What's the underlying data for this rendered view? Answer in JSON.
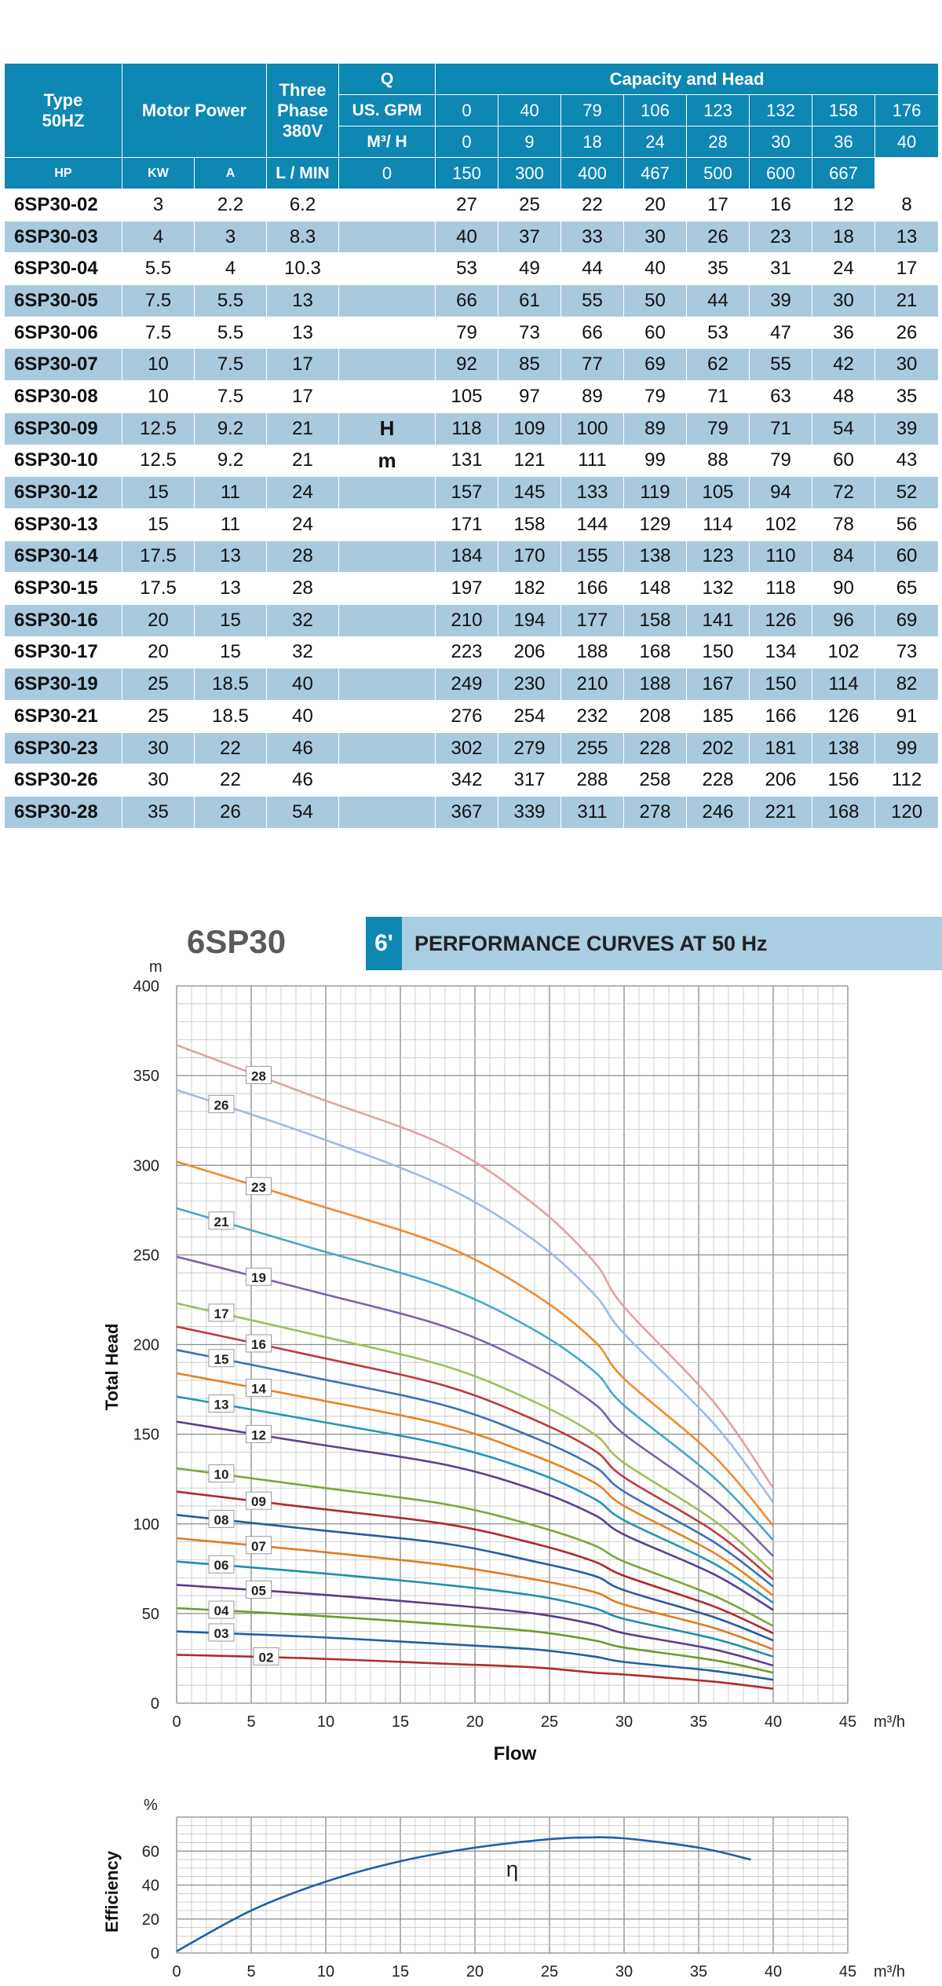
{
  "table": {
    "header": {
      "type": "Type\n50HZ",
      "type_line1": "Type",
      "type_line2": "50HZ",
      "motor_power": "Motor Power",
      "three_phase_1": "Three",
      "three_phase_2": "Phase",
      "three_phase_3": "380V",
      "q": "Q",
      "capacity_head": "Capacity and Head",
      "us_gpm_label": "US. GPM",
      "m3h_label": "M³/ H",
      "lmin_label": "L / MIN",
      "hp": "HP",
      "kw": "KW",
      "a": "A",
      "us_gpm": [
        "0",
        "40",
        "79",
        "106",
        "123",
        "132",
        "158",
        "176"
      ],
      "m3h": [
        "0",
        "9",
        "18",
        "24",
        "28",
        "30",
        "36",
        "40"
      ],
      "lmin": [
        "0",
        "150",
        "300",
        "400",
        "467",
        "500",
        "600",
        "667"
      ]
    },
    "h_label": "H",
    "m_label": "m",
    "rows": [
      {
        "type": "6SP30-02",
        "hp": "3",
        "kw": "2.2",
        "a": "6.2",
        "head": [
          "27",
          "25",
          "22",
          "20",
          "17",
          "16",
          "12",
          "8"
        ]
      },
      {
        "type": "6SP30-03",
        "hp": "4",
        "kw": "3",
        "a": "8.3",
        "head": [
          "40",
          "37",
          "33",
          "30",
          "26",
          "23",
          "18",
          "13"
        ]
      },
      {
        "type": "6SP30-04",
        "hp": "5.5",
        "kw": "4",
        "a": "10.3",
        "head": [
          "53",
          "49",
          "44",
          "40",
          "35",
          "31",
          "24",
          "17"
        ]
      },
      {
        "type": "6SP30-05",
        "hp": "7.5",
        "kw": "5.5",
        "a": "13",
        "head": [
          "66",
          "61",
          "55",
          "50",
          "44",
          "39",
          "30",
          "21"
        ]
      },
      {
        "type": "6SP30-06",
        "hp": "7.5",
        "kw": "5.5",
        "a": "13",
        "head": [
          "79",
          "73",
          "66",
          "60",
          "53",
          "47",
          "36",
          "26"
        ]
      },
      {
        "type": "6SP30-07",
        "hp": "10",
        "kw": "7.5",
        "a": "17",
        "head": [
          "92",
          "85",
          "77",
          "69",
          "62",
          "55",
          "42",
          "30"
        ]
      },
      {
        "type": "6SP30-08",
        "hp": "10",
        "kw": "7.5",
        "a": "17",
        "head": [
          "105",
          "97",
          "89",
          "79",
          "71",
          "63",
          "48",
          "35"
        ]
      },
      {
        "type": "6SP30-09",
        "hp": "12.5",
        "kw": "9.2",
        "a": "21",
        "head": [
          "118",
          "109",
          "100",
          "89",
          "79",
          "71",
          "54",
          "39"
        ]
      },
      {
        "type": "6SP30-10",
        "hp": "12.5",
        "kw": "9.2",
        "a": "21",
        "head": [
          "131",
          "121",
          "111",
          "99",
          "88",
          "79",
          "60",
          "43"
        ]
      },
      {
        "type": "6SP30-12",
        "hp": "15",
        "kw": "11",
        "a": "24",
        "head": [
          "157",
          "145",
          "133",
          "119",
          "105",
          "94",
          "72",
          "52"
        ]
      },
      {
        "type": "6SP30-13",
        "hp": "15",
        "kw": "11",
        "a": "24",
        "head": [
          "171",
          "158",
          "144",
          "129",
          "114",
          "102",
          "78",
          "56"
        ]
      },
      {
        "type": "6SP30-14",
        "hp": "17.5",
        "kw": "13",
        "a": "28",
        "head": [
          "184",
          "170",
          "155",
          "138",
          "123",
          "110",
          "84",
          "60"
        ]
      },
      {
        "type": "6SP30-15",
        "hp": "17.5",
        "kw": "13",
        "a": "28",
        "head": [
          "197",
          "182",
          "166",
          "148",
          "132",
          "118",
          "90",
          "65"
        ]
      },
      {
        "type": "6SP30-16",
        "hp": "20",
        "kw": "15",
        "a": "32",
        "head": [
          "210",
          "194",
          "177",
          "158",
          "141",
          "126",
          "96",
          "69"
        ]
      },
      {
        "type": "6SP30-17",
        "hp": "20",
        "kw": "15",
        "a": "32",
        "head": [
          "223",
          "206",
          "188",
          "168",
          "150",
          "134",
          "102",
          "73"
        ]
      },
      {
        "type": "6SP30-19",
        "hp": "25",
        "kw": "18.5",
        "a": "40",
        "head": [
          "249",
          "230",
          "210",
          "188",
          "167",
          "150",
          "114",
          "82"
        ]
      },
      {
        "type": "6SP30-21",
        "hp": "25",
        "kw": "18.5",
        "a": "40",
        "head": [
          "276",
          "254",
          "232",
          "208",
          "185",
          "166",
          "126",
          "91"
        ]
      },
      {
        "type": "6SP30-23",
        "hp": "30",
        "kw": "22",
        "a": "46",
        "head": [
          "302",
          "279",
          "255",
          "228",
          "202",
          "181",
          "138",
          "99"
        ]
      },
      {
        "type": "6SP30-26",
        "hp": "30",
        "kw": "22",
        "a": "46",
        "head": [
          "342",
          "317",
          "288",
          "258",
          "228",
          "206",
          "156",
          "112"
        ]
      },
      {
        "type": "6SP30-28",
        "hp": "35",
        "kw": "26",
        "a": "54",
        "head": [
          "367",
          "339",
          "311",
          "278",
          "246",
          "221",
          "168",
          "120"
        ]
      }
    ]
  },
  "heading": {
    "model": "6SP30",
    "size": "6ʹ",
    "title": "PERFORMANCE CURVES AT 50 Hz"
  },
  "chart_data": [
    {
      "type": "line",
      "title": "",
      "xlabel": "Flow",
      "ylabel": "Total Head",
      "x_unit": "m³/h",
      "y_unit": "m",
      "xlim": [
        0,
        45
      ],
      "ylim": [
        0,
        400
      ],
      "x_ticks": [
        0,
        5,
        10,
        15,
        20,
        25,
        30,
        35,
        40,
        45
      ],
      "y_ticks": [
        0,
        50,
        100,
        150,
        200,
        250,
        300,
        350,
        400
      ],
      "grid": true,
      "x": [
        0,
        9,
        18,
        24,
        28,
        30,
        36,
        40
      ],
      "series": [
        {
          "name": "02",
          "color": "#b22b2b",
          "values": [
            27,
            25,
            22,
            20,
            17,
            16,
            12,
            8
          ]
        },
        {
          "name": "03",
          "color": "#1f5fa8",
          "values": [
            40,
            37,
            33,
            30,
            26,
            23,
            18,
            13
          ]
        },
        {
          "name": "04",
          "color": "#6f9a2c",
          "values": [
            53,
            49,
            44,
            40,
            35,
            31,
            24,
            17
          ]
        },
        {
          "name": "05",
          "color": "#5c3b87",
          "values": [
            66,
            61,
            55,
            50,
            44,
            39,
            30,
            21
          ]
        },
        {
          "name": "06",
          "color": "#1e8fa8",
          "values": [
            79,
            73,
            66,
            60,
            53,
            47,
            36,
            26
          ]
        },
        {
          "name": "07",
          "color": "#e07b22",
          "values": [
            92,
            85,
            77,
            69,
            62,
            55,
            42,
            30
          ]
        },
        {
          "name": "08",
          "color": "#2a5aa0",
          "values": [
            105,
            97,
            89,
            79,
            71,
            63,
            48,
            35
          ]
        },
        {
          "name": "09",
          "color": "#b0282d",
          "values": [
            118,
            109,
            100,
            89,
            79,
            71,
            54,
            39
          ]
        },
        {
          "name": "10",
          "color": "#7ca63a",
          "values": [
            131,
            121,
            111,
            99,
            88,
            79,
            60,
            43
          ]
        },
        {
          "name": "12",
          "color": "#5d3f8e",
          "values": [
            157,
            145,
            133,
            119,
            105,
            94,
            72,
            52
          ]
        },
        {
          "name": "13",
          "color": "#2596b8",
          "values": [
            171,
            158,
            144,
            129,
            114,
            102,
            78,
            56
          ]
        },
        {
          "name": "14",
          "color": "#e8821f",
          "values": [
            184,
            170,
            155,
            138,
            123,
            110,
            84,
            60
          ]
        },
        {
          "name": "15",
          "color": "#3e6fb8",
          "values": [
            197,
            182,
            166,
            148,
            132,
            118,
            90,
            65
          ]
        },
        {
          "name": "16",
          "color": "#c0393c",
          "values": [
            210,
            194,
            177,
            158,
            141,
            126,
            96,
            69
          ]
        },
        {
          "name": "17",
          "color": "#9bc05a",
          "values": [
            223,
            206,
            188,
            168,
            150,
            134,
            102,
            73
          ]
        },
        {
          "name": "19",
          "color": "#7e62a8",
          "values": [
            249,
            230,
            210,
            188,
            167,
            150,
            114,
            82
          ]
        },
        {
          "name": "21",
          "color": "#4aa7c8",
          "values": [
            276,
            254,
            232,
            208,
            185,
            166,
            126,
            91
          ]
        },
        {
          "name": "23",
          "color": "#f08a32",
          "values": [
            302,
            279,
            255,
            228,
            202,
            181,
            138,
            99
          ]
        },
        {
          "name": "26",
          "color": "#9ebbe0",
          "values": [
            342,
            317,
            288,
            258,
            228,
            206,
            156,
            112
          ]
        },
        {
          "name": "28",
          "color": "#e3a0a0",
          "values": [
            367,
            339,
            311,
            278,
            246,
            221,
            168,
            120
          ]
        }
      ]
    },
    {
      "type": "line",
      "title": "",
      "xlabel": "",
      "ylabel": "Efficiency",
      "x_unit": "m³/h",
      "y_unit": "%",
      "xlim": [
        0,
        45
      ],
      "ylim": [
        0,
        80
      ],
      "x_ticks": [
        0,
        5,
        10,
        15,
        20,
        25,
        30,
        35,
        40,
        45
      ],
      "y_ticks": [
        0,
        20,
        40,
        60
      ],
      "grid": true,
      "annotation": "η",
      "series": [
        {
          "name": "",
          "color": "#1f5fa8",
          "x": [
            0,
            5,
            10,
            15,
            20,
            25,
            27.5,
            30,
            35,
            38.5
          ],
          "values": [
            1,
            25,
            42,
            54,
            62,
            67,
            68,
            67.5,
            62,
            55
          ]
        }
      ]
    }
  ]
}
